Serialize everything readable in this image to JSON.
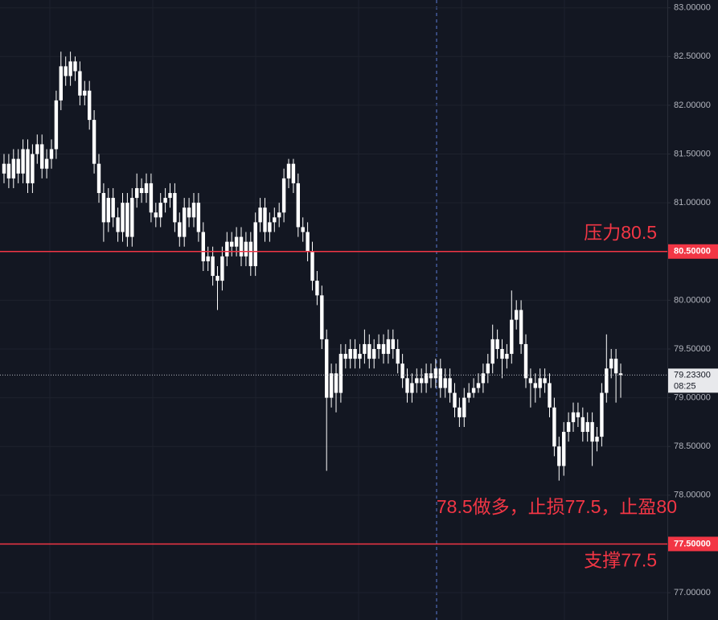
{
  "chart_data": {
    "type": "candlestick",
    "color": "#ffffff",
    "grid": true,
    "ylim": [
      76.72,
      83.08
    ],
    "yticks": [
      {
        "value": 77,
        "label": "77.00000"
      },
      {
        "value": 77.5,
        "label": "77.50000"
      },
      {
        "value": 78,
        "label": "78.00000"
      },
      {
        "value": 78.5,
        "label": "78.50000"
      },
      {
        "value": 79,
        "label": "79.00000"
      },
      {
        "value": 79.5,
        "label": "79.50000"
      },
      {
        "value": 80,
        "label": "80.00000"
      },
      {
        "value": 80.5,
        "label": "80.50000"
      },
      {
        "value": 81,
        "label": "81.00000"
      },
      {
        "value": 81.5,
        "label": "81.50000"
      },
      {
        "value": 82,
        "label": "82.00000"
      },
      {
        "value": 82.5,
        "label": "82.50000"
      },
      {
        "value": 83,
        "label": "83.00000"
      }
    ],
    "levels": [
      {
        "value": 80.5,
        "label": "80.50000",
        "text": "压力80.5",
        "color": "#f23645"
      },
      {
        "value": 77.5,
        "label": "77.50000",
        "text": "支撑77.5",
        "color": "#f23645"
      }
    ],
    "annotation": "78.5做多，止损77.5，止盈80",
    "last_price": {
      "value": 79.233,
      "label": "79.23300"
    },
    "countdown": "08:25",
    "ohlc": [
      [
        81.3,
        81.5,
        81.2,
        81.4
      ],
      [
        81.4,
        81.5,
        81.15,
        81.25
      ],
      [
        81.25,
        81.55,
        81.15,
        81.45
      ],
      [
        81.45,
        81.55,
        81.2,
        81.3
      ],
      [
        81.3,
        81.65,
        81.2,
        81.55
      ],
      [
        81.55,
        81.65,
        81.1,
        81.2
      ],
      [
        81.2,
        81.6,
        81.1,
        81.5
      ],
      [
        81.5,
        81.7,
        81.4,
        81.6
      ],
      [
        81.6,
        81.7,
        81.25,
        81.35
      ],
      [
        81.35,
        81.55,
        81.25,
        81.45
      ],
      [
        81.45,
        81.65,
        81.35,
        81.55
      ],
      [
        81.55,
        82.15,
        81.45,
        82.05
      ],
      [
        82.05,
        82.55,
        81.95,
        82.4
      ],
      [
        82.4,
        82.5,
        82.2,
        82.3
      ],
      [
        82.3,
        82.55,
        82.2,
        82.45
      ],
      [
        82.45,
        82.5,
        82.25,
        82.35
      ],
      [
        82.35,
        82.45,
        82.0,
        82.1
      ],
      [
        82.1,
        82.25,
        82.0,
        82.15
      ],
      [
        82.15,
        82.25,
        81.75,
        81.85
      ],
      [
        81.85,
        81.95,
        81.3,
        81.4
      ],
      [
        81.4,
        81.5,
        81.0,
        81.1
      ],
      [
        81.1,
        81.2,
        80.6,
        80.8
      ],
      [
        80.8,
        81.15,
        80.7,
        81.05
      ],
      [
        81.05,
        81.15,
        80.75,
        80.85
      ],
      [
        80.85,
        80.95,
        80.6,
        80.7
      ],
      [
        80.7,
        81.1,
        80.6,
        81.0
      ],
      [
        81.0,
        81.1,
        80.55,
        80.65
      ],
      [
        80.65,
        81.15,
        80.55,
        81.05
      ],
      [
        81.05,
        81.3,
        80.95,
        81.15
      ],
      [
        81.15,
        81.25,
        81.0,
        81.1
      ],
      [
        81.1,
        81.3,
        81.0,
        81.2
      ],
      [
        81.2,
        81.3,
        80.8,
        80.9
      ],
      [
        80.9,
        81.0,
        80.75,
        80.85
      ],
      [
        80.85,
        81.1,
        80.75,
        81.0
      ],
      [
        81.0,
        81.15,
        80.9,
        81.05
      ],
      [
        81.05,
        81.2,
        80.95,
        81.1
      ],
      [
        81.1,
        81.2,
        80.7,
        80.8
      ],
      [
        80.8,
        80.9,
        80.55,
        80.65
      ],
      [
        80.65,
        81.05,
        80.55,
        80.95
      ],
      [
        80.95,
        81.05,
        80.75,
        80.85
      ],
      [
        80.85,
        81.1,
        80.75,
        81.0
      ],
      [
        81.0,
        81.1,
        80.6,
        80.7
      ],
      [
        80.7,
        80.8,
        80.3,
        80.4
      ],
      [
        80.4,
        80.55,
        80.3,
        80.45
      ],
      [
        80.45,
        80.55,
        80.15,
        80.25
      ],
      [
        80.25,
        80.35,
        79.9,
        80.2
      ],
      [
        80.2,
        80.55,
        80.1,
        80.45
      ],
      [
        80.45,
        80.7,
        80.35,
        80.6
      ],
      [
        80.6,
        80.7,
        80.45,
        80.55
      ],
      [
        80.55,
        80.75,
        80.45,
        80.65
      ],
      [
        80.65,
        80.75,
        80.35,
        80.45
      ],
      [
        80.45,
        80.7,
        80.35,
        80.6
      ],
      [
        80.6,
        80.7,
        80.25,
        80.35
      ],
      [
        80.35,
        80.9,
        80.25,
        80.8
      ],
      [
        80.8,
        81.05,
        80.7,
        80.95
      ],
      [
        80.95,
        81.05,
        80.6,
        80.7
      ],
      [
        80.7,
        80.9,
        80.6,
        80.8
      ],
      [
        80.8,
        80.95,
        80.7,
        80.85
      ],
      [
        80.85,
        81.0,
        80.75,
        80.9
      ],
      [
        80.9,
        81.35,
        80.8,
        81.25
      ],
      [
        81.25,
        81.45,
        81.15,
        81.4
      ],
      [
        81.4,
        81.45,
        81.1,
        81.2
      ],
      [
        81.2,
        81.3,
        80.65,
        80.75
      ],
      [
        80.75,
        80.85,
        80.6,
        80.7
      ],
      [
        80.7,
        80.8,
        80.4,
        80.5
      ],
      [
        80.5,
        80.6,
        80.1,
        80.2
      ],
      [
        80.2,
        80.3,
        79.95,
        80.05
      ],
      [
        80.05,
        80.15,
        79.5,
        79.6
      ],
      [
        79.6,
        79.7,
        78.25,
        79.0
      ],
      [
        79.0,
        79.35,
        78.9,
        79.25
      ],
      [
        79.25,
        79.35,
        78.85,
        79.05
      ],
      [
        79.05,
        79.55,
        78.95,
        79.45
      ],
      [
        79.45,
        79.55,
        79.3,
        79.4
      ],
      [
        79.4,
        79.6,
        79.3,
        79.5
      ],
      [
        79.5,
        79.6,
        79.3,
        79.4
      ],
      [
        79.4,
        79.55,
        79.3,
        79.45
      ],
      [
        79.45,
        79.7,
        79.35,
        79.55
      ],
      [
        79.55,
        79.65,
        79.3,
        79.4
      ],
      [
        79.4,
        79.6,
        79.3,
        79.5
      ],
      [
        79.5,
        79.65,
        79.4,
        79.55
      ],
      [
        79.55,
        79.65,
        79.35,
        79.45
      ],
      [
        79.45,
        79.7,
        79.35,
        79.6
      ],
      [
        79.6,
        79.7,
        79.4,
        79.5
      ],
      [
        79.5,
        79.6,
        79.25,
        79.35
      ],
      [
        79.35,
        79.45,
        79.1,
        79.2
      ],
      [
        79.2,
        79.3,
        78.95,
        79.05
      ],
      [
        79.05,
        79.25,
        78.95,
        79.15
      ],
      [
        79.15,
        79.3,
        79.05,
        79.2
      ],
      [
        79.2,
        79.3,
        79.05,
        79.15
      ],
      [
        79.15,
        79.35,
        79.05,
        79.25
      ],
      [
        79.25,
        79.35,
        79.1,
        79.2
      ],
      [
        79.2,
        79.4,
        79.1,
        79.3
      ],
      [
        79.3,
        79.4,
        79.0,
        79.1
      ],
      [
        79.1,
        79.3,
        79.0,
        79.2
      ],
      [
        79.2,
        79.3,
        78.95,
        79.05
      ],
      [
        79.05,
        79.15,
        78.8,
        78.9
      ],
      [
        78.9,
        79.0,
        78.7,
        78.8
      ],
      [
        78.8,
        79.1,
        78.7,
        79.0
      ],
      [
        79.0,
        79.15,
        78.95,
        79.05
      ],
      [
        79.05,
        79.2,
        79.0,
        79.1
      ],
      [
        79.1,
        79.25,
        79.05,
        79.15
      ],
      [
        79.15,
        79.35,
        79.05,
        79.25
      ],
      [
        79.25,
        79.45,
        79.15,
        79.35
      ],
      [
        79.35,
        79.75,
        79.25,
        79.6
      ],
      [
        79.6,
        79.7,
        79.4,
        79.5
      ],
      [
        79.5,
        79.6,
        79.2,
        79.4
      ],
      [
        79.4,
        79.55,
        79.3,
        79.45
      ],
      [
        79.45,
        80.1,
        79.35,
        79.8
      ],
      [
        79.8,
        80.0,
        79.7,
        79.9
      ],
      [
        79.9,
        80.0,
        79.45,
        79.55
      ],
      [
        79.55,
        79.65,
        79.1,
        79.2
      ],
      [
        79.2,
        79.3,
        78.9,
        79.15
      ],
      [
        79.15,
        79.25,
        78.95,
        79.1
      ],
      [
        79.1,
        79.3,
        79.0,
        79.2
      ],
      [
        79.2,
        79.3,
        79.05,
        79.15
      ],
      [
        79.15,
        79.25,
        78.8,
        78.9
      ],
      [
        78.9,
        79.0,
        78.4,
        78.5
      ],
      [
        78.5,
        78.6,
        78.15,
        78.3
      ],
      [
        78.3,
        78.75,
        78.2,
        78.65
      ],
      [
        78.65,
        78.85,
        78.55,
        78.75
      ],
      [
        78.75,
        78.95,
        78.65,
        78.85
      ],
      [
        78.85,
        78.95,
        78.7,
        78.8
      ],
      [
        78.8,
        78.9,
        78.55,
        78.65
      ],
      [
        78.65,
        78.85,
        78.55,
        78.75
      ],
      [
        78.75,
        78.85,
        78.3,
        78.55
      ],
      [
        78.55,
        78.7,
        78.45,
        78.6
      ],
      [
        78.6,
        79.15,
        78.5,
        79.05
      ],
      [
        79.05,
        79.65,
        78.95,
        79.3
      ],
      [
        79.3,
        79.5,
        79.2,
        79.4
      ],
      [
        79.4,
        79.5,
        78.95,
        79.25
      ],
      [
        79.25,
        79.35,
        79.0,
        79.233
      ]
    ]
  }
}
